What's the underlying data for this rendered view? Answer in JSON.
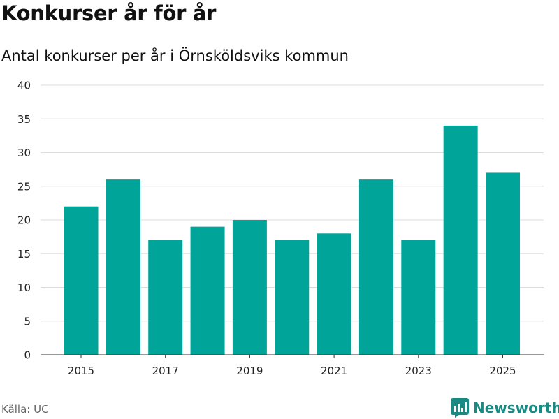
{
  "header": {
    "title": "Konkurser år för år",
    "subtitle": "Antal konkurser per år i Örnsköldsviks kommun"
  },
  "footer": {
    "source": "Källa: UC",
    "brand": "Newsworthy",
    "brand_icon": "bar-chart-icon"
  },
  "colors": {
    "bar": "#00a499",
    "grid": "#dddddd",
    "axis": "#333333",
    "brand": "#1b8a82"
  },
  "chart_data": {
    "type": "bar",
    "title": "Konkurser år för år",
    "subtitle": "Antal konkurser per år i Örnsköldsviks kommun",
    "xlabel": "",
    "ylabel": "",
    "categories": [
      "2015",
      "2016",
      "2017",
      "2018",
      "2019",
      "2020",
      "2021",
      "2022",
      "2023",
      "2024",
      "2025"
    ],
    "values": [
      22,
      26,
      17,
      19,
      20,
      17,
      18,
      26,
      17,
      34,
      27
    ],
    "x_tick_labels": [
      "2015",
      "2017",
      "2019",
      "2021",
      "2023",
      "2025"
    ],
    "y_ticks": [
      0,
      5,
      10,
      15,
      20,
      25,
      30,
      35,
      40
    ],
    "ylim": [
      0,
      40
    ],
    "grid": true,
    "legend": "none"
  }
}
